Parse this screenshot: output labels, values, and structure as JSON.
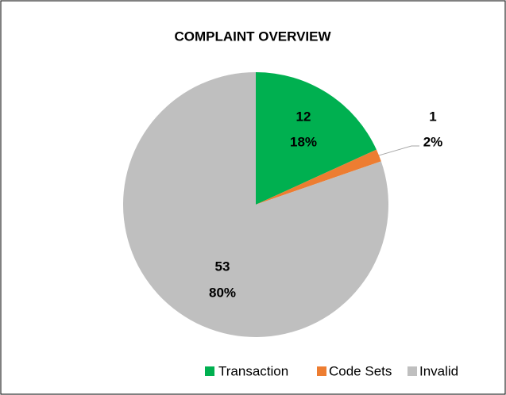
{
  "chart_data": {
    "type": "pie",
    "title": "COMPLAINT OVERVIEW",
    "categories": [
      "Transaction",
      "Code Sets",
      "Invalid"
    ],
    "values": [
      12,
      1,
      53
    ],
    "percent_labels": [
      "18%",
      "2%",
      "80%"
    ],
    "colors": [
      "#00b050",
      "#ed7d31",
      "#bfbfbf"
    ],
    "legend": "bottom"
  }
}
